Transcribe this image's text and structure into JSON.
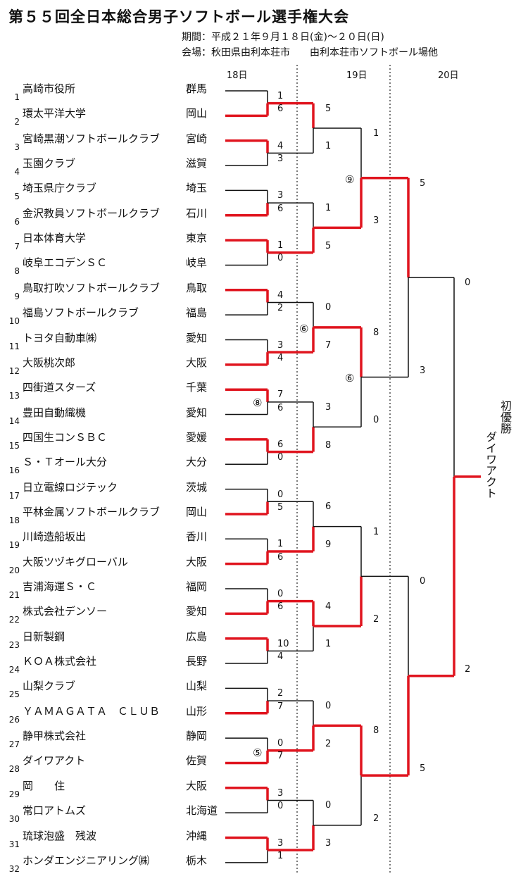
{
  "header": {
    "title": "第５５回全日本総合男子ソフトボール選手権大会",
    "period": "期間：平成２１年９月１８日(金)～２０日(日)",
    "venue": "会場：秋田県由利本荘市　　由利本荘市ソフトボール場他"
  },
  "days": [
    "18日",
    "19日",
    "20日"
  ],
  "teams": [
    {
      "no": "1",
      "name": "高崎市役所",
      "pref": "群馬"
    },
    {
      "no": "2",
      "name": "環太平洋大学",
      "pref": "岡山"
    },
    {
      "no": "3",
      "name": "宮崎黒潮ソフトボールクラブ",
      "pref": "宮崎"
    },
    {
      "no": "4",
      "name": "玉園クラブ",
      "pref": "滋賀"
    },
    {
      "no": "5",
      "name": "埼玉県庁クラブ",
      "pref": "埼玉"
    },
    {
      "no": "6",
      "name": "金沢教員ソフトボールクラブ",
      "pref": "石川"
    },
    {
      "no": "7",
      "name": "日本体育大学",
      "pref": "東京"
    },
    {
      "no": "8",
      "name": "岐阜エコデンＳＣ",
      "pref": "岐阜"
    },
    {
      "no": "9",
      "name": "鳥取打吹ソフトボールクラブ",
      "pref": "鳥取"
    },
    {
      "no": "10",
      "name": "福島ソフトボールクラブ",
      "pref": "福島"
    },
    {
      "no": "11",
      "name": "トヨタ自動車㈱",
      "pref": "愛知"
    },
    {
      "no": "12",
      "name": "大阪桃次郎",
      "pref": "大阪"
    },
    {
      "no": "13",
      "name": "四街道スターズ",
      "pref": "千葉"
    },
    {
      "no": "14",
      "name": "豊田自動織機",
      "pref": "愛知"
    },
    {
      "no": "15",
      "name": "四国生コンＳＢＣ",
      "pref": "愛媛"
    },
    {
      "no": "16",
      "name": "Ｓ・Ｔオール大分",
      "pref": "大分"
    },
    {
      "no": "17",
      "name": "日立電線ロジテック",
      "pref": "茨城"
    },
    {
      "no": "18",
      "name": "平林金属ソフトボールクラブ",
      "pref": "岡山"
    },
    {
      "no": "19",
      "name": "川崎造船坂出",
      "pref": "香川"
    },
    {
      "no": "20",
      "name": "大阪ツヅキグローバル",
      "pref": "大阪"
    },
    {
      "no": "21",
      "name": "吉浦海運Ｓ・Ｃ",
      "pref": "福岡"
    },
    {
      "no": "22",
      "name": "株式会社デンソー",
      "pref": "愛知"
    },
    {
      "no": "23",
      "name": "日新製鋼",
      "pref": "広島"
    },
    {
      "no": "24",
      "name": "ＫＯＡ株式会社",
      "pref": "長野"
    },
    {
      "no": "25",
      "name": "山梨クラブ",
      "pref": "山梨"
    },
    {
      "no": "26",
      "name": "ＹＡＭＡＧＡＴＡ　ＣＬＵＢ",
      "pref": "山形"
    },
    {
      "no": "27",
      "name": "静甲株式会社",
      "pref": "静岡"
    },
    {
      "no": "28",
      "name": "ダイワアクト",
      "pref": "佐賀"
    },
    {
      "no": "29",
      "name": "岡　　住",
      "pref": "大阪"
    },
    {
      "no": "30",
      "name": "常口アトムズ",
      "pref": "北海道"
    },
    {
      "no": "31",
      "name": "琉球泡盛　残波",
      "pref": "沖縄"
    },
    {
      "no": "32",
      "name": "ホンダエンジニアリング㈱",
      "pref": "栃木"
    }
  ],
  "scores": {
    "r1": [
      "1",
      "6",
      "4",
      "3",
      "3",
      "6",
      "1",
      "0",
      "4",
      "2",
      "3",
      "4",
      "7",
      "6",
      "6",
      "0",
      "0",
      "5",
      "1",
      "6",
      "0",
      "6",
      "10",
      "4",
      "2",
      "7",
      "0",
      "7",
      "3",
      "0",
      "3",
      "1"
    ],
    "r2": [
      "5",
      "1",
      "1",
      "5",
      "0",
      "7",
      "3",
      "8",
      "6",
      "9",
      "4",
      "1",
      "0",
      "2",
      "0",
      "3"
    ],
    "r3": [
      "1",
      "3",
      "8",
      "0",
      "1",
      "2",
      "8",
      "2"
    ],
    "r4": [
      "5",
      "3",
      "0",
      "5"
    ],
    "r5": [
      "0",
      "2"
    ]
  },
  "marks": [
    "⑨",
    "⑥",
    "⑥",
    "⑧",
    "⑤"
  ],
  "champion_label": "初優勝",
  "champion_team": "ダイワアクト",
  "colors": {
    "win": "#e0141e",
    "line": "#111111"
  }
}
